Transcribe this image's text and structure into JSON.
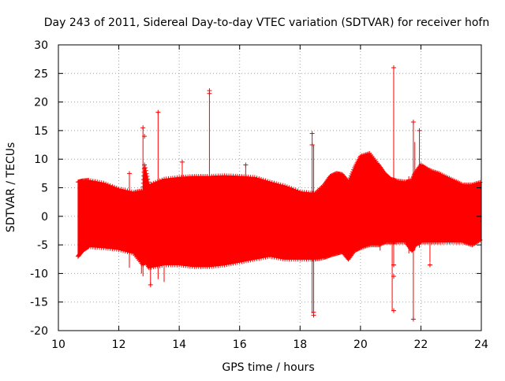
{
  "chart_data": {
    "type": "scatter",
    "title": "Day 243 of 2011, Sidereal Day-to-day VTEC variation (SDTVAR) for receiver hofn",
    "xlabel": "GPS time / hours",
    "ylabel": "SDTVAR / TECUs",
    "xlim": [
      10,
      24
    ],
    "ylim": [
      -20,
      30
    ],
    "xticks": [
      10,
      12,
      14,
      16,
      18,
      20,
      22,
      24
    ],
    "yticks": [
      -20,
      -15,
      -10,
      -5,
      0,
      5,
      10,
      15,
      20,
      25,
      30
    ],
    "grid": true,
    "marker": "+",
    "color": "#ff0000",
    "series": [
      {
        "name": "SDTVAR",
        "band": {
          "x": [
            10.65,
            10.8,
            11.0,
            11.5,
            12.0,
            12.5,
            12.8,
            12.85,
            13.0,
            13.5,
            14.0,
            14.5,
            15.0,
            15.5,
            16.0,
            16.5,
            17.0,
            17.5,
            18.0,
            18.5,
            18.8,
            19.0,
            19.2,
            19.4,
            19.6,
            19.8,
            20.0,
            20.3,
            20.6,
            20.8,
            21.0,
            21.2,
            21.5,
            21.7,
            21.8,
            22.0,
            22.3,
            22.6,
            23.0,
            23.4,
            23.7,
            24.0
          ],
          "upper": [
            6.0,
            6.2,
            6.3,
            5.8,
            4.8,
            4.2,
            4.5,
            9.0,
            5.5,
            6.5,
            6.8,
            7.0,
            7.0,
            7.1,
            7.0,
            6.8,
            6.0,
            5.3,
            4.3,
            4.0,
            5.5,
            7.0,
            7.5,
            7.3,
            6.0,
            8.5,
            10.5,
            11.0,
            9.0,
            7.5,
            6.5,
            6.2,
            6.0,
            6.2,
            7.5,
            9.0,
            8.0,
            7.5,
            6.5,
            5.5,
            5.5,
            6.0
          ],
          "lower": [
            -7.0,
            -6.0,
            -5.3,
            -5.5,
            -5.8,
            -6.5,
            -8.5,
            -7.5,
            -9.0,
            -8.5,
            -8.5,
            -8.8,
            -8.8,
            -8.5,
            -8.0,
            -7.5,
            -7.0,
            -7.5,
            -7.5,
            -7.5,
            -7.2,
            -6.8,
            -6.5,
            -6.2,
            -7.5,
            -6.0,
            -5.5,
            -5.0,
            -5.0,
            -4.5,
            -4.5,
            -4.5,
            -4.5,
            -6.0,
            -5.0,
            -4.5,
            -4.5,
            -4.5,
            -4.5,
            -4.5,
            -5.0,
            -4.0
          ]
        },
        "spikes": [
          [
            12.35,
            -9.0,
            7.5
          ],
          [
            12.75,
            -10.0,
            4.0
          ],
          [
            12.8,
            -10.5,
            15.5
          ],
          [
            13.05,
            -12.0,
            5.0
          ],
          [
            13.3,
            -11.0,
            18.2
          ],
          [
            13.5,
            -11.5,
            6.0
          ],
          [
            14.1,
            -8.5,
            9.5
          ],
          [
            15.0,
            -8.5,
            21.8
          ],
          [
            16.2,
            -7.5,
            9.0
          ],
          [
            18.4,
            -17.0,
            14.5
          ],
          [
            18.45,
            -16.5,
            12.5
          ],
          [
            20.65,
            -6.0,
            9.0
          ],
          [
            21.05,
            -16.5,
            6.0
          ],
          [
            21.1,
            -8.5,
            26.0
          ],
          [
            21.6,
            -6.5,
            7.0
          ],
          [
            21.75,
            -18.0,
            16.5
          ],
          [
            21.8,
            -6.0,
            13.0
          ],
          [
            21.95,
            -5.5,
            15.0
          ],
          [
            22.3,
            -8.0,
            8.5
          ]
        ],
        "points": [
          [
            21.1,
            26.0
          ],
          [
            15.0,
            22.0
          ],
          [
            15.0,
            21.5
          ],
          [
            13.3,
            18.2
          ],
          [
            18.4,
            14.5
          ],
          [
            18.4,
            12.5
          ],
          [
            18.45,
            -16.8
          ],
          [
            18.45,
            -17.3
          ],
          [
            21.75,
            16.5
          ],
          [
            21.75,
            -18.0
          ],
          [
            21.95,
            15.0
          ],
          [
            14.1,
            9.5
          ],
          [
            12.8,
            15.5
          ],
          [
            12.85,
            14.0
          ],
          [
            21.1,
            -16.5
          ],
          [
            16.2,
            9.0
          ],
          [
            12.35,
            7.5
          ],
          [
            13.05,
            -12.0
          ],
          [
            21.1,
            -10.5
          ],
          [
            21.1,
            -8.5
          ],
          [
            22.3,
            -8.5
          ]
        ]
      }
    ]
  }
}
